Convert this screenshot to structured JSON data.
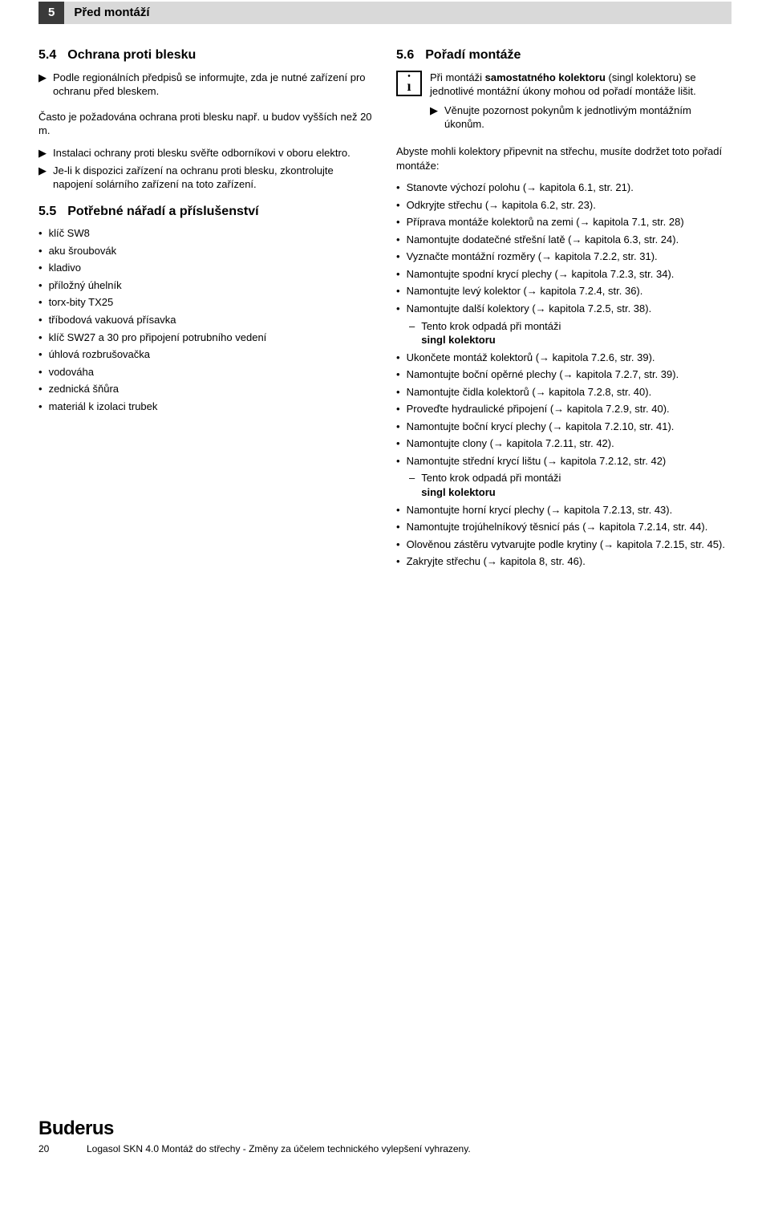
{
  "header": {
    "number": "5",
    "title": "Před montáží"
  },
  "left": {
    "s54": {
      "num": "5.4",
      "title": "Ochrana proti blesku",
      "tri1": "Podle regionálních předpisů se informujte, zda je nutné zařízení pro ochranu před bleskem.",
      "para1": "Často je požadována ochrana proti blesku např. u budov vyšších než 20 m.",
      "tri2": "Instalaci ochrany proti blesku svěřte odborníkovi v oboru elektro.",
      "tri3": "Je-li k dispozici zařízení na ochranu proti blesku, zkontrolujte napojení solárního zařízení na toto zařízení."
    },
    "s55": {
      "num": "5.5",
      "title": "Potřebné nářadí a příslušenství",
      "items": [
        "klíč SW8",
        "aku šroubovák",
        "kladivo",
        "příložný úhelník",
        "torx-bity TX25",
        "tříbodová vakuová přísavka",
        "klíč SW27 a 30 pro připojení potrubního vedení",
        "úhlová rozbrušovačka",
        "vodováha",
        "zednická šňůra",
        "materiál k izolaci trubek"
      ]
    }
  },
  "right": {
    "s56": {
      "num": "5.6",
      "title": "Pořadí montáže",
      "info_a": "Při montáži ",
      "info_bold": "samostatného kolektoru",
      "info_b": " (singl kolektoru) se jednotlivé montážní úkony mohou od pořadí montáže lišit.",
      "info_tri": "Věnujte pozornost pokynům k jednotlivým montážním úkonům.",
      "para": "Abyste mohli kolektory připevnit na střechu, musíte dodržet toto pořadí montáže:",
      "items": [
        {
          "t": "Stanovte výchozí polohu (→ kapitola 6.1, str. 21)."
        },
        {
          "t": "Odkryjte střechu (→ kapitola 6.2, str. 23)."
        },
        {
          "t": "Příprava montáže kolektorů na zemi (→ kapitola 7.1, str. 28)"
        },
        {
          "t": "Namontujte dodatečné střešní latě (→ kapitola 6.3, str. 24)."
        },
        {
          "t": "Vyznačte montážní rozměry (→ kapitola 7.2.2, str. 31)."
        },
        {
          "t": "Namontujte spodní krycí plechy (→ kapitola 7.2.3, str. 34)."
        },
        {
          "t": "Namontujte levý kolektor (→ kapitola 7.2.4, str. 36)."
        },
        {
          "t": "Namontujte další kolektory (→ kapitola 7.2.5, str. 38).",
          "sub": {
            "a": "Tento krok odpadá při montáži ",
            "b": "singl kolektoru"
          }
        },
        {
          "t": "Ukončete montáž kolektorů (→ kapitola 7.2.6, str. 39)."
        },
        {
          "t": "Namontujte boční opěrné plechy (→ kapitola 7.2.7, str. 39)."
        },
        {
          "t": "Namontujte čidla kolektorů (→ kapitola 7.2.8, str. 40)."
        },
        {
          "t": "Proveďte hydraulické připojení (→ kapitola 7.2.9, str. 40)."
        },
        {
          "t": "Namontujte boční krycí plechy (→ kapitola 7.2.10, str. 41)."
        },
        {
          "t": "Namontujte clony (→ kapitola 7.2.11, str. 42)."
        },
        {
          "t": "Namontujte střední krycí lištu (→ kapitola 7.2.12, str. 42)",
          "sub": {
            "a": "Tento krok odpadá při montáži ",
            "b": "singl kolektoru"
          }
        },
        {
          "t": "Namontujte horní krycí plechy (→ kapitola 7.2.13, str. 43)."
        },
        {
          "t": "Namontujte trojúhelníkový těsnicí pás (→ kapitola 7.2.14, str. 44)."
        },
        {
          "t": "Olověnou zástěru vytvarujte podle krytiny (→ kapitola 7.2.15, str. 45)."
        },
        {
          "t": "Zakryjte střechu (→ kapitola 8, str. 46)."
        }
      ]
    }
  },
  "footer": {
    "logo": "Buderus",
    "page": "20",
    "text": "Logasol SKN 4.0 Montáž do střechy - Změny za účelem technického vylepšení vyhrazeny."
  }
}
